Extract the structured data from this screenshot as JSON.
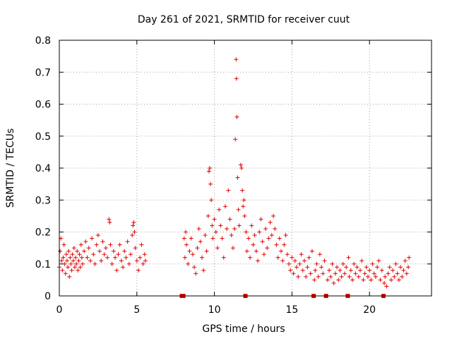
{
  "chart_data": {
    "type": "scatter",
    "title": "Day 261 of 2021, SRMTID for receiver cuut",
    "xlabel": "GPS time / hours",
    "ylabel": "SRMTID / TECUs",
    "xlim": [
      0,
      24
    ],
    "ylim": [
      0,
      0.8
    ],
    "xticks": [
      0,
      5,
      10,
      15,
      20
    ],
    "yticks": [
      0,
      0.1,
      0.2,
      0.3,
      0.4,
      0.5,
      0.6,
      0.7,
      0.8
    ],
    "xtick_labels": [
      "0",
      "5",
      "10",
      "15",
      "20"
    ],
    "ytick_labels": [
      "0",
      "0.1",
      "0.2",
      "0.3",
      "0.4",
      "0.5",
      "0.6",
      "0.7",
      "0.8"
    ],
    "grid": true,
    "series": [
      {
        "name": "SRMTID",
        "color": "#e00000",
        "marker": "plus",
        "points": [
          [
            0.0,
            0.09
          ],
          [
            0.05,
            0.14
          ],
          [
            0.1,
            0.18
          ],
          [
            0.15,
            0.11
          ],
          [
            0.2,
            0.08
          ],
          [
            0.25,
            0.12
          ],
          [
            0.3,
            0.16
          ],
          [
            0.35,
            0.1
          ],
          [
            0.4,
            0.07
          ],
          [
            0.45,
            0.13
          ],
          [
            0.5,
            0.11
          ],
          [
            0.55,
            0.09
          ],
          [
            0.6,
            0.14
          ],
          [
            0.65,
            0.06
          ],
          [
            0.7,
            0.12
          ],
          [
            0.75,
            0.1
          ],
          [
            0.8,
            0.08
          ],
          [
            0.85,
            0.13
          ],
          [
            0.9,
            0.11
          ],
          [
            0.95,
            0.15
          ],
          [
            1.0,
            0.09
          ],
          [
            1.05,
            0.12
          ],
          [
            1.1,
            0.1
          ],
          [
            1.15,
            0.14
          ],
          [
            1.2,
            0.08
          ],
          [
            1.25,
            0.11
          ],
          [
            1.3,
            0.13
          ],
          [
            1.35,
            0.09
          ],
          [
            1.4,
            0.16
          ],
          [
            1.45,
            0.12
          ],
          [
            1.5,
            0.1
          ],
          [
            1.6,
            0.14
          ],
          [
            1.7,
            0.17
          ],
          [
            1.8,
            0.12
          ],
          [
            1.9,
            0.15
          ],
          [
            2.0,
            0.11
          ],
          [
            2.1,
            0.18
          ],
          [
            2.2,
            0.13
          ],
          [
            2.3,
            0.1
          ],
          [
            2.4,
            0.16
          ],
          [
            2.5,
            0.19
          ],
          [
            2.6,
            0.14
          ],
          [
            2.7,
            0.11
          ],
          [
            2.8,
            0.17
          ],
          [
            2.9,
            0.13
          ],
          [
            3.0,
            0.15
          ],
          [
            3.1,
            0.12
          ],
          [
            3.2,
            0.24
          ],
          [
            3.25,
            0.23
          ],
          [
            3.3,
            0.16
          ],
          [
            3.4,
            0.1
          ],
          [
            3.5,
            0.14
          ],
          [
            3.6,
            0.12
          ],
          [
            3.7,
            0.08
          ],
          [
            3.8,
            0.13
          ],
          [
            3.9,
            0.16
          ],
          [
            4.0,
            0.11
          ],
          [
            4.1,
            0.09
          ],
          [
            4.2,
            0.14
          ],
          [
            4.3,
            0.12
          ],
          [
            4.4,
            0.17
          ],
          [
            4.5,
            0.1
          ],
          [
            4.6,
            0.13
          ],
          [
            4.7,
            0.19
          ],
          [
            4.75,
            0.22
          ],
          [
            4.8,
            0.23
          ],
          [
            4.85,
            0.2
          ],
          [
            4.9,
            0.15
          ],
          [
            5.0,
            0.11
          ],
          [
            5.1,
            0.08
          ],
          [
            5.2,
            0.12
          ],
          [
            5.3,
            0.16
          ],
          [
            5.4,
            0.1
          ],
          [
            5.5,
            0.13
          ],
          [
            5.55,
            0.11
          ],
          [
            7.9,
            0.0
          ],
          [
            8.0,
            0.0
          ],
          [
            8.05,
            0.18
          ],
          [
            8.1,
            0.12
          ],
          [
            8.15,
            0.2
          ],
          [
            8.2,
            0.16
          ],
          [
            8.3,
            0.1
          ],
          [
            8.4,
            0.14
          ],
          [
            8.5,
            0.18
          ],
          [
            8.6,
            0.13
          ],
          [
            8.7,
            0.09
          ],
          [
            8.8,
            0.07
          ],
          [
            8.9,
            0.15
          ],
          [
            9.0,
            0.21
          ],
          [
            9.1,
            0.17
          ],
          [
            9.2,
            0.12
          ],
          [
            9.3,
            0.08
          ],
          [
            9.4,
            0.19
          ],
          [
            9.5,
            0.14
          ],
          [
            9.6,
            0.25
          ],
          [
            9.65,
            0.39
          ],
          [
            9.7,
            0.4
          ],
          [
            9.75,
            0.35
          ],
          [
            9.8,
            0.3
          ],
          [
            9.85,
            0.22
          ],
          [
            9.9,
            0.18
          ],
          [
            10.0,
            0.24
          ],
          [
            10.1,
            0.2
          ],
          [
            10.2,
            0.15
          ],
          [
            10.3,
            0.27
          ],
          [
            10.4,
            0.22
          ],
          [
            10.5,
            0.18
          ],
          [
            10.6,
            0.12
          ],
          [
            10.7,
            0.28
          ],
          [
            10.8,
            0.21
          ],
          [
            10.9,
            0.33
          ],
          [
            11.0,
            0.24
          ],
          [
            11.1,
            0.19
          ],
          [
            11.2,
            0.15
          ],
          [
            11.3,
            0.21
          ],
          [
            11.35,
            0.49
          ],
          [
            11.4,
            0.74
          ],
          [
            11.42,
            0.68
          ],
          [
            11.45,
            0.56
          ],
          [
            11.5,
            0.37
          ],
          [
            11.55,
            0.27
          ],
          [
            11.6,
            0.22
          ],
          [
            11.7,
            0.41
          ],
          [
            11.75,
            0.4
          ],
          [
            11.8,
            0.33
          ],
          [
            11.85,
            0.28
          ],
          [
            11.9,
            0.3
          ],
          [
            11.95,
            0.25
          ],
          [
            12.0,
            0.0
          ],
          [
            12.05,
            0.2
          ],
          [
            12.1,
            0.14
          ],
          [
            12.2,
            0.18
          ],
          [
            12.3,
            0.12
          ],
          [
            12.4,
            0.22
          ],
          [
            12.5,
            0.16
          ],
          [
            12.6,
            0.19
          ],
          [
            12.7,
            0.14
          ],
          [
            12.8,
            0.11
          ],
          [
            12.9,
            0.2
          ],
          [
            13.0,
            0.24
          ],
          [
            13.1,
            0.17
          ],
          [
            13.2,
            0.13
          ],
          [
            13.3,
            0.21
          ],
          [
            13.4,
            0.15
          ],
          [
            13.5,
            0.18
          ],
          [
            13.6,
            0.23
          ],
          [
            13.7,
            0.19
          ],
          [
            13.8,
            0.25
          ],
          [
            13.9,
            0.21
          ],
          [
            14.0,
            0.16
          ],
          [
            14.1,
            0.12
          ],
          [
            14.2,
            0.18
          ],
          [
            14.3,
            0.14
          ],
          [
            14.4,
            0.11
          ],
          [
            14.5,
            0.16
          ],
          [
            14.6,
            0.19
          ],
          [
            14.7,
            0.13
          ],
          [
            14.8,
            0.1
          ],
          [
            14.9,
            0.08
          ],
          [
            15.0,
            0.12
          ],
          [
            15.1,
            0.07
          ],
          [
            15.2,
            0.11
          ],
          [
            15.3,
            0.09
          ],
          [
            15.4,
            0.06
          ],
          [
            15.5,
            0.1
          ],
          [
            15.6,
            0.13
          ],
          [
            15.7,
            0.08
          ],
          [
            15.8,
            0.11
          ],
          [
            15.9,
            0.06
          ],
          [
            16.0,
            0.09
          ],
          [
            16.1,
            0.12
          ],
          [
            16.2,
            0.07
          ],
          [
            16.3,
            0.14
          ],
          [
            16.4,
            0.0
          ],
          [
            16.45,
            0.05
          ],
          [
            16.5,
            0.08
          ],
          [
            16.6,
            0.1
          ],
          [
            16.7,
            0.06
          ],
          [
            16.8,
            0.13
          ],
          [
            16.9,
            0.09
          ],
          [
            17.0,
            0.07
          ],
          [
            17.1,
            0.11
          ],
          [
            17.2,
            0.0
          ],
          [
            17.3,
            0.05
          ],
          [
            17.4,
            0.08
          ],
          [
            17.5,
            0.06
          ],
          [
            17.6,
            0.1
          ],
          [
            17.7,
            0.04
          ],
          [
            17.8,
            0.07
          ],
          [
            17.9,
            0.09
          ],
          [
            18.0,
            0.05
          ],
          [
            18.1,
            0.08
          ],
          [
            18.2,
            0.06
          ],
          [
            18.3,
            0.1
          ],
          [
            18.4,
            0.07
          ],
          [
            18.5,
            0.09
          ],
          [
            18.6,
            0.0
          ],
          [
            18.65,
            0.12
          ],
          [
            18.7,
            0.06
          ],
          [
            18.8,
            0.08
          ],
          [
            18.9,
            0.05
          ],
          [
            19.0,
            0.1
          ],
          [
            19.1,
            0.07
          ],
          [
            19.2,
            0.09
          ],
          [
            19.3,
            0.06
          ],
          [
            19.4,
            0.08
          ],
          [
            19.5,
            0.11
          ],
          [
            19.6,
            0.05
          ],
          [
            19.7,
            0.07
          ],
          [
            19.8,
            0.09
          ],
          [
            19.9,
            0.06
          ],
          [
            20.0,
            0.08
          ],
          [
            20.1,
            0.05
          ],
          [
            20.2,
            0.1
          ],
          [
            20.3,
            0.07
          ],
          [
            20.4,
            0.06
          ],
          [
            20.5,
            0.09
          ],
          [
            20.6,
            0.11
          ],
          [
            20.7,
            0.05
          ],
          [
            20.8,
            0.08
          ],
          [
            20.9,
            0.0
          ],
          [
            20.95,
            0.04
          ],
          [
            21.0,
            0.06
          ],
          [
            21.1,
            0.03
          ],
          [
            21.2,
            0.07
          ],
          [
            21.3,
            0.09
          ],
          [
            21.4,
            0.05
          ],
          [
            21.5,
            0.08
          ],
          [
            21.6,
            0.06
          ],
          [
            21.7,
            0.1
          ],
          [
            21.8,
            0.07
          ],
          [
            21.9,
            0.05
          ],
          [
            22.0,
            0.09
          ],
          [
            22.1,
            0.06
          ],
          [
            22.2,
            0.08
          ],
          [
            22.3,
            0.11
          ],
          [
            22.4,
            0.07
          ],
          [
            22.5,
            0.09
          ],
          [
            22.55,
            0.12
          ]
        ]
      }
    ]
  }
}
